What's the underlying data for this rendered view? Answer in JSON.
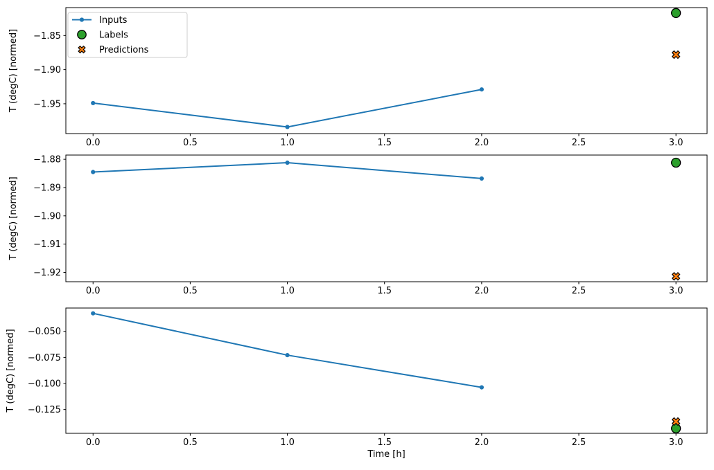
{
  "figure": {
    "background": "#ffffff",
    "xlabel": "Time [h]"
  },
  "colors": {
    "inputs": "#1f77b4",
    "labels_fill": "#2ca02c",
    "predictions_fill": "#ff7f0e",
    "marker_edge": "#000000",
    "axis": "#000000",
    "legend_border": "#cccccc",
    "text": "#000000"
  },
  "legend": {
    "position": "upper left",
    "entries": [
      {
        "label": "Inputs",
        "marker": "line-with-dot",
        "color": "#1f77b4"
      },
      {
        "label": "Labels",
        "marker": "circle",
        "color": "#2ca02c"
      },
      {
        "label": "Predictions",
        "marker": "X",
        "color": "#ff7f0e"
      }
    ]
  },
  "chart_data": [
    {
      "type": "line",
      "subplot": 1,
      "ylabel": "T (degC) [normed]",
      "xlabel": "",
      "xlim": [
        -0.14,
        3.16
      ],
      "ylim": [
        -1.9937,
        -1.8091
      ],
      "grid": false,
      "legend_visible": true,
      "xticks": {
        "values": [
          0,
          0.5,
          1,
          1.5,
          2,
          2.5,
          3
        ],
        "labels": [
          "0.0",
          "0.5",
          "1.0",
          "1.5",
          "2.0",
          "2.5",
          "3.0"
        ]
      },
      "yticks": {
        "values": [
          -1.85,
          -1.9,
          -1.95
        ],
        "labels": [
          "−1.85",
          "−1.90",
          "−1.95"
        ]
      },
      "series": [
        {
          "name": "Inputs",
          "kind": "line",
          "marker": "dot",
          "color": "#1f77b4",
          "x": [
            0,
            1,
            2
          ],
          "y": [
            -1.949,
            -1.984,
            -1.929
          ]
        },
        {
          "name": "Labels",
          "kind": "scatter",
          "marker": "circle",
          "color": "#2ca02c",
          "edge": "#000000",
          "x": [
            3
          ],
          "y": [
            -1.817
          ]
        },
        {
          "name": "Predictions",
          "kind": "scatter",
          "marker": "X",
          "color": "#ff7f0e",
          "edge": "#000000",
          "x": [
            3
          ],
          "y": [
            -1.878
          ]
        }
      ]
    },
    {
      "type": "line",
      "subplot": 2,
      "ylabel": "T (degC) [normed]",
      "xlabel": "",
      "xlim": [
        -0.14,
        3.16
      ],
      "ylim": [
        -1.9233,
        -1.8785
      ],
      "grid": false,
      "legend_visible": false,
      "xticks": {
        "values": [
          0,
          0.5,
          1,
          1.5,
          2,
          2.5,
          3
        ],
        "labels": [
          "0.0",
          "0.5",
          "1.0",
          "1.5",
          "2.0",
          "2.5",
          "3.0"
        ]
      },
      "yticks": {
        "values": [
          -1.88,
          -1.89,
          -1.9,
          -1.91,
          -1.92
        ],
        "labels": [
          "−1.88",
          "−1.89",
          "−1.90",
          "−1.91",
          "−1.92"
        ]
      },
      "series": [
        {
          "name": "Inputs",
          "kind": "line",
          "marker": "dot",
          "color": "#1f77b4",
          "x": [
            0,
            1,
            2
          ],
          "y": [
            -1.8845,
            -1.8812,
            -1.8868
          ]
        },
        {
          "name": "Labels",
          "kind": "scatter",
          "marker": "circle",
          "color": "#2ca02c",
          "edge": "#000000",
          "x": [
            3
          ],
          "y": [
            -1.8812
          ]
        },
        {
          "name": "Predictions",
          "kind": "scatter",
          "marker": "X",
          "color": "#ff7f0e",
          "edge": "#000000",
          "x": [
            3
          ],
          "y": [
            -1.9214
          ]
        }
      ]
    },
    {
      "type": "line",
      "subplot": 3,
      "ylabel": "T (degC) [normed]",
      "xlabel": "Time [h]",
      "xlim": [
        -0.14,
        3.16
      ],
      "ylim": [
        -0.1478,
        -0.0276
      ],
      "grid": false,
      "legend_visible": false,
      "xticks": {
        "values": [
          0,
          0.5,
          1,
          1.5,
          2,
          2.5,
          3
        ],
        "labels": [
          "0.0",
          "0.5",
          "1.0",
          "1.5",
          "2.0",
          "2.5",
          "3.0"
        ]
      },
      "yticks": {
        "values": [
          -0.05,
          -0.075,
          -0.1,
          -0.125
        ],
        "labels": [
          "−0.050",
          "−0.075",
          "−0.100",
          "−0.125"
        ]
      },
      "series": [
        {
          "name": "Inputs",
          "kind": "line",
          "marker": "dot",
          "color": "#1f77b4",
          "x": [
            0,
            1,
            2
          ],
          "y": [
            -0.0327,
            -0.0728,
            -0.1037
          ]
        },
        {
          "name": "Labels",
          "kind": "scatter",
          "marker": "circle",
          "color": "#2ca02c",
          "edge": "#000000",
          "x": [
            3
          ],
          "y": [
            -0.1431
          ]
        },
        {
          "name": "Predictions",
          "kind": "scatter",
          "marker": "X",
          "color": "#ff7f0e",
          "edge": "#000000",
          "x": [
            3
          ],
          "y": [
            -0.1365
          ]
        }
      ]
    }
  ]
}
